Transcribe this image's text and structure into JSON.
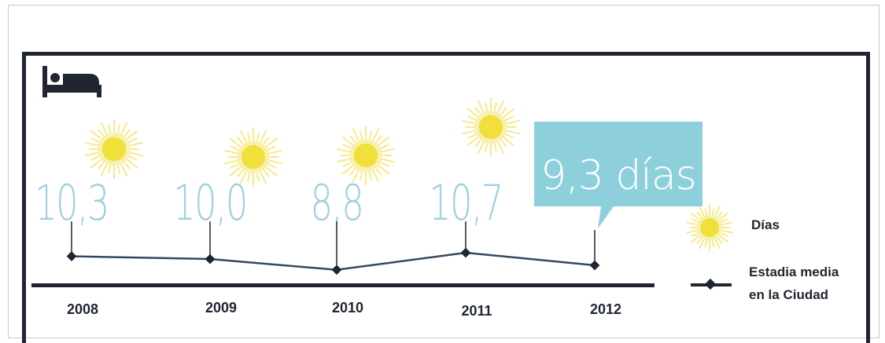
{
  "chart_data": {
    "type": "line",
    "categories": [
      "2008",
      "2009",
      "2010",
      "2011",
      "2012"
    ],
    "series": [
      {
        "name": "Estadia media en la Ciudad",
        "values": [
          10.3,
          10.0,
          8.8,
          10.7,
          9.3
        ]
      }
    ],
    "value_labels": [
      "10,3",
      "10,0",
      "8,8",
      "10,7"
    ],
    "highlight": {
      "category": "2012",
      "label": "9,3 días"
    },
    "legend": {
      "placement": "right",
      "entries": [
        {
          "icon": "sun-icon",
          "label": "Días"
        },
        {
          "icon": "line-marker",
          "label_lines": [
            "Estadia media",
            "en la Ciudad"
          ]
        }
      ]
    },
    "header_icon": "bed-icon",
    "colors": {
      "value_text": "#9fd0de",
      "callout": "#8ecfdc",
      "line": "#34495e",
      "axis": "#1f2630",
      "sun_core": "#f1e03a",
      "sun_rays": "#f6ea8a"
    }
  }
}
